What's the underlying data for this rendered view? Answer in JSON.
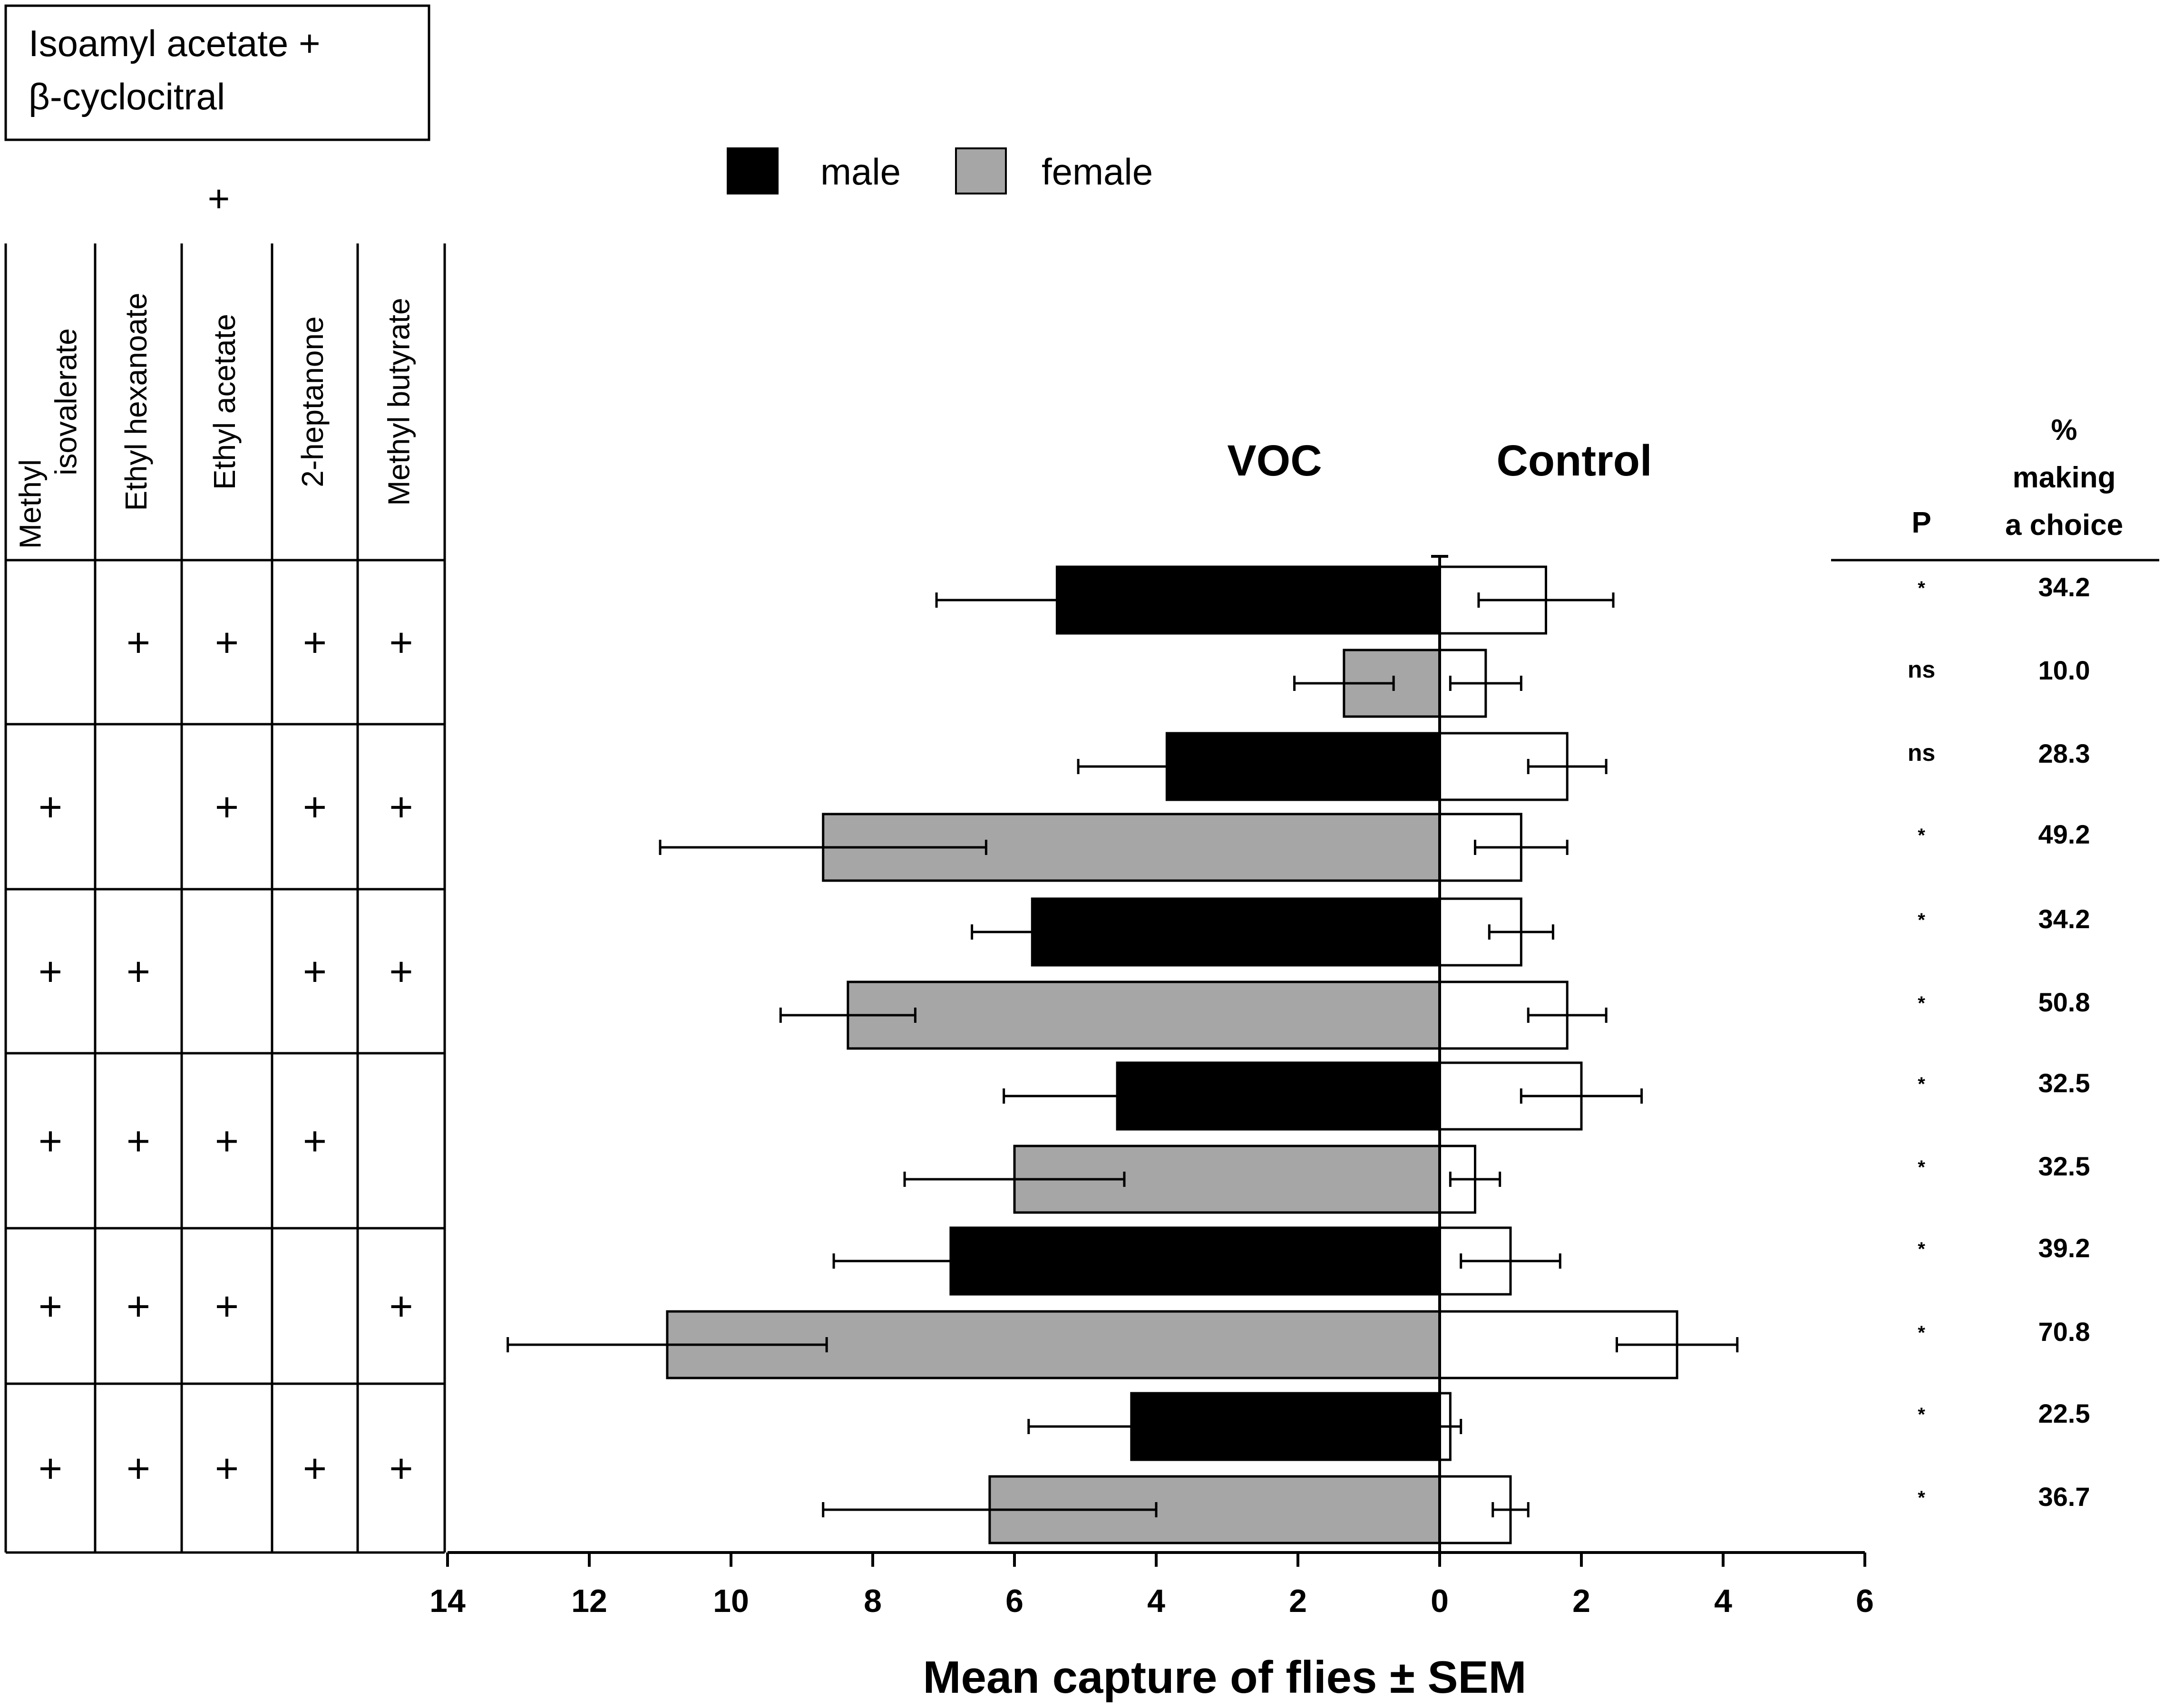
{
  "compound_box": {
    "line1": "Isoamyl acetate +",
    "line2": "β-cyclocitral"
  },
  "plus_symbol": "+",
  "legend": [
    {
      "label": "male",
      "color": "#000000"
    },
    {
      "label": "female",
      "color": "#a6a6a6"
    }
  ],
  "combo_table": {
    "columns": [
      [
        "Methyl",
        "isovalerate"
      ],
      [
        "Ethyl hexanoate"
      ],
      [
        "Ethyl acetate"
      ],
      [
        "2-heptanone"
      ],
      [
        "Methyl butyrate"
      ]
    ],
    "rows": [
      [
        false,
        true,
        true,
        true,
        true
      ],
      [
        true,
        false,
        true,
        true,
        true
      ],
      [
        true,
        true,
        false,
        true,
        true
      ],
      [
        true,
        true,
        true,
        true,
        false
      ],
      [
        true,
        true,
        true,
        false,
        true
      ],
      [
        true,
        true,
        true,
        true,
        true
      ]
    ]
  },
  "stats_header": {
    "p_label": "P",
    "pct_line1": "%",
    "pct_line2": "making",
    "pct_line3": "a choice"
  },
  "chart_data": {
    "type": "bar",
    "orientation": "horizontal-diverging",
    "title": "",
    "side_labels": {
      "left": "VOC",
      "right": "Control"
    },
    "xlabel": "Mean capture of flies ± SEM",
    "xlim_left": [
      0,
      14
    ],
    "xlim_right": [
      0,
      6
    ],
    "ticks_left": [
      "14",
      "12",
      "10",
      "8",
      "6",
      "4",
      "2",
      "0"
    ],
    "ticks_right": [
      "2",
      "4",
      "6"
    ],
    "control_color": "#ffffff",
    "bars": [
      {
        "group": 1,
        "sex": "male",
        "voc": 5.4,
        "voc_err": 1.7,
        "control": 1.5,
        "control_err": 0.95,
        "p": "*",
        "pct": "34.2"
      },
      {
        "group": 1,
        "sex": "female",
        "voc": 1.35,
        "voc_err": 0.7,
        "control": 0.65,
        "control_err": 0.5,
        "p": "ns",
        "pct": "10.0"
      },
      {
        "group": 2,
        "sex": "male",
        "voc": 3.85,
        "voc_err": 1.25,
        "control": 1.8,
        "control_err": 0.55,
        "p": "ns",
        "pct": "28.3"
      },
      {
        "group": 2,
        "sex": "female",
        "voc": 8.7,
        "voc_err": 2.3,
        "control": 1.15,
        "control_err": 0.65,
        "p": "*",
        "pct": "49.2"
      },
      {
        "group": 3,
        "sex": "male",
        "voc": 5.75,
        "voc_err": 0.85,
        "control": 1.15,
        "control_err": 0.45,
        "p": "*",
        "pct": "34.2"
      },
      {
        "group": 3,
        "sex": "female",
        "voc": 8.35,
        "voc_err": 0.95,
        "control": 1.8,
        "control_err": 0.55,
        "p": "*",
        "pct": "50.8"
      },
      {
        "group": 4,
        "sex": "male",
        "voc": 4.55,
        "voc_err": 1.6,
        "control": 2.0,
        "control_err": 0.85,
        "p": "*",
        "pct": "32.5"
      },
      {
        "group": 4,
        "sex": "female",
        "voc": 6.0,
        "voc_err": 1.55,
        "control": 0.5,
        "control_err": 0.35,
        "p": "*",
        "pct": "32.5"
      },
      {
        "group": 5,
        "sex": "male",
        "voc": 6.9,
        "voc_err": 1.65,
        "control": 1.0,
        "control_err": 0.7,
        "p": "*",
        "pct": "39.2"
      },
      {
        "group": 5,
        "sex": "female",
        "voc": 10.9,
        "voc_err": 2.25,
        "control": 3.35,
        "control_err": 0.85,
        "p": "*",
        "pct": "70.8"
      },
      {
        "group": 6,
        "sex": "male",
        "voc": 4.35,
        "voc_err": 1.45,
        "control": 0.15,
        "control_err": 0.15,
        "p": "*",
        "pct": "22.5"
      },
      {
        "group": 6,
        "sex": "female",
        "voc": 6.35,
        "voc_err": 2.35,
        "control": 1.0,
        "control_err": 0.25,
        "p": "*",
        "pct": "36.7"
      }
    ]
  }
}
